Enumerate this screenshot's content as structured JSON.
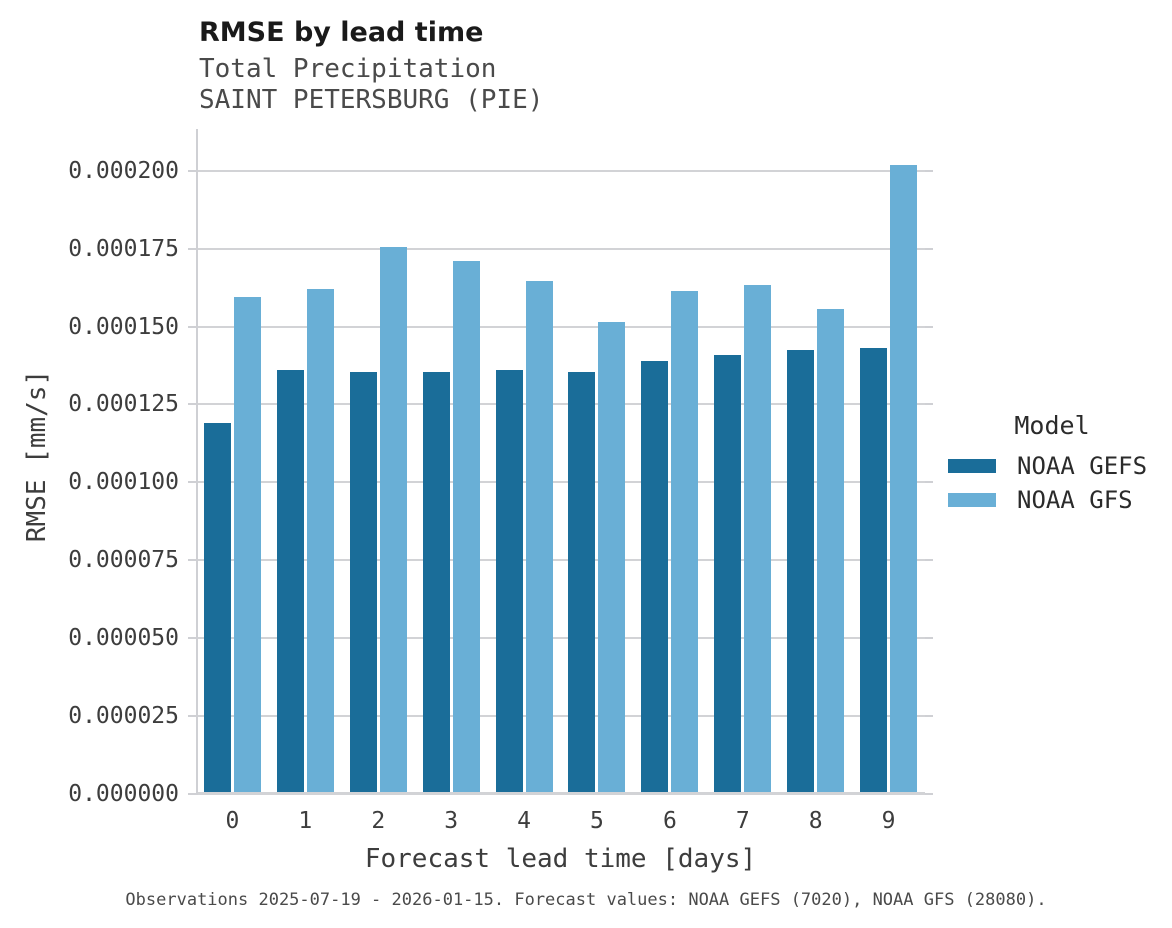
{
  "header": {
    "title": "RMSE by lead time",
    "subtitle_line1": "Total Precipitation",
    "subtitle_line2": "SAINT PETERSBURG (PIE)"
  },
  "chart_data": {
    "type": "bar",
    "title": "RMSE by lead time",
    "subtitle": [
      "Total Precipitation",
      "SAINT PETERSBURG (PIE)"
    ],
    "xlabel": "Forecast lead time [days]",
    "ylabel": "RMSE [mm/s]",
    "categories": [
      "0",
      "1",
      "2",
      "3",
      "4",
      "5",
      "6",
      "7",
      "8",
      "9"
    ],
    "series": [
      {
        "name": "NOAA GEFS",
        "color": "#1a6d99",
        "values": [
          0.000119,
          0.000136,
          0.0001355,
          0.0001355,
          0.000136,
          0.0001355,
          0.000139,
          0.000141,
          0.0001425,
          0.000143
        ]
      },
      {
        "name": "NOAA GFS",
        "color": "#69afd6",
        "values": [
          0.0001595,
          0.000162,
          0.0001755,
          0.000171,
          0.0001645,
          0.0001515,
          0.0001615,
          0.0001635,
          0.0001555,
          0.000202
        ]
      }
    ],
    "ylim": [
      0,
      0.0002134
    ],
    "yticks": [
      0,
      2.5e-05,
      5e-05,
      7.5e-05,
      0.0001,
      0.000125,
      0.00015,
      0.000175,
      0.0002
    ],
    "ytick_labels": [
      "0.000000",
      "0.000025",
      "0.000050",
      "0.000075",
      "0.000100",
      "0.000125",
      "0.000150",
      "0.000175",
      "0.000200"
    ],
    "grid": true,
    "legend_title": "Model",
    "legend_position": "right"
  },
  "legend": {
    "title": "Model",
    "entries": [
      {
        "label": "NOAA GEFS",
        "color": "#1a6d99"
      },
      {
        "label": "NOAA GFS",
        "color": "#69afd6"
      }
    ]
  },
  "caption": {
    "text": "Observations 2025-07-19 - 2026-01-15. Forecast values: NOAA GEFS (7020), NOAA GFS (28080)."
  },
  "colors": {
    "background": "#ffffff",
    "grid": "#d2d3d6",
    "title_text": "#1a1a1a",
    "subtitle_text": "#4a4a4a",
    "tick_text": "#3d3d3d",
    "series_dark": "#1a6d99",
    "series_light": "#69afd6"
  }
}
